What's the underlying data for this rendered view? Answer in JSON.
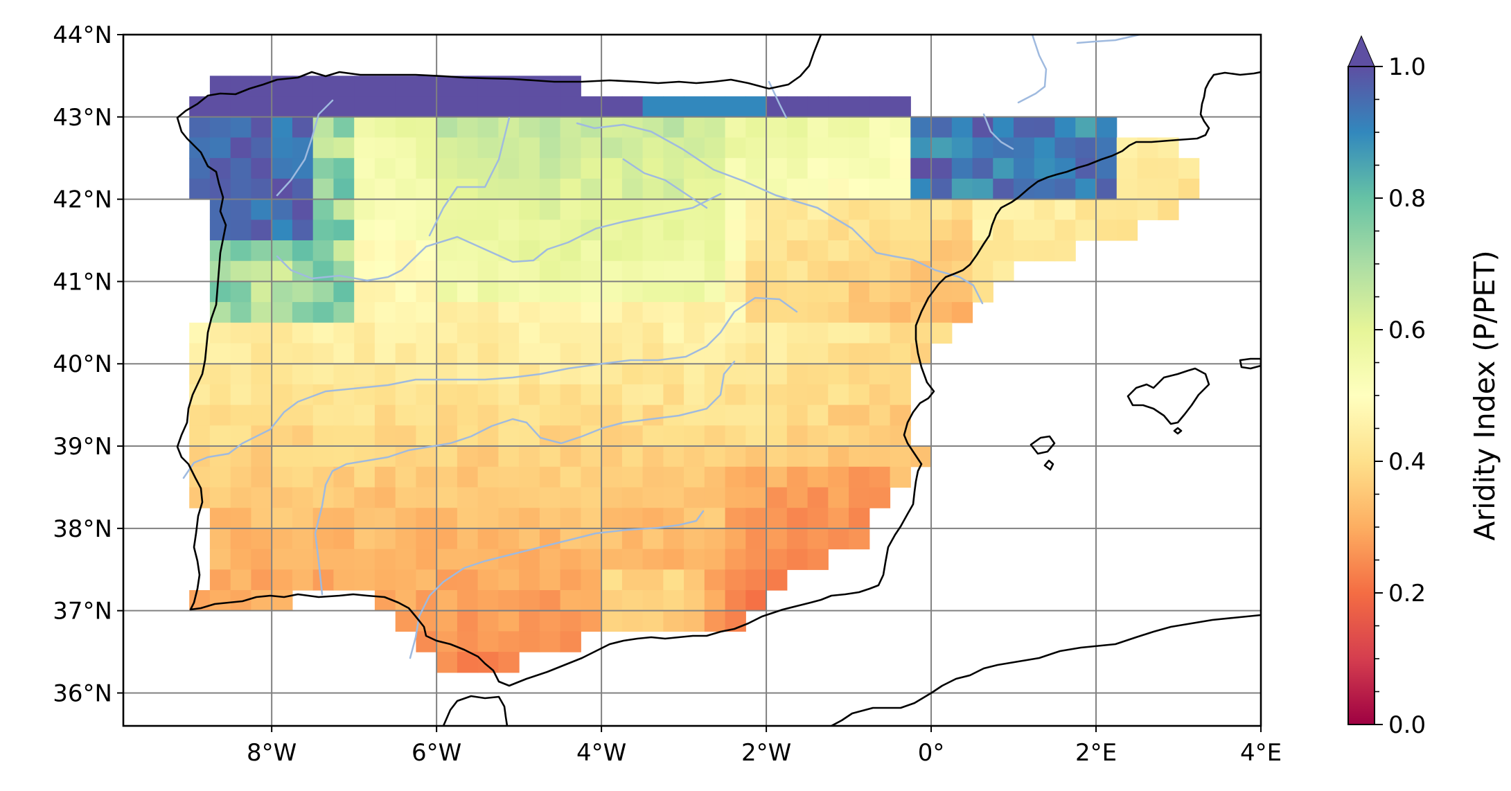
{
  "map": {
    "type": "raster-heatmap",
    "extent": {
      "lon_min": -9.8,
      "lon_max": 4.0,
      "lat_min": 35.6,
      "lat_max": 44.0
    },
    "grid_lines": true,
    "x_ticks": [
      {
        "value": -8,
        "label": "8°W"
      },
      {
        "value": -6,
        "label": "6°W"
      },
      {
        "value": -4,
        "label": "4°W"
      },
      {
        "value": -2,
        "label": "2°W"
      },
      {
        "value": 0,
        "label": "0°"
      },
      {
        "value": 2,
        "label": "2°E"
      },
      {
        "value": 4,
        "label": "4°E"
      }
    ],
    "y_ticks": [
      {
        "value": 44,
        "label": "44°N"
      },
      {
        "value": 43,
        "label": "43°N"
      },
      {
        "value": 42,
        "label": "42°N"
      },
      {
        "value": 41,
        "label": "41°N"
      },
      {
        "value": 40,
        "label": "40°N"
      },
      {
        "value": 39,
        "label": "39°N"
      },
      {
        "value": 38,
        "label": "38°N"
      },
      {
        "value": 37,
        "label": "37°N"
      },
      {
        "value": 36,
        "label": "36°N"
      }
    ],
    "colorbar": {
      "label": "Aridity Index (P/PET)",
      "colormap": "Spectral",
      "min": 0.0,
      "max": 1.0,
      "extend": "max",
      "ticks": [
        {
          "value": 0.0,
          "label": "0.0"
        },
        {
          "value": 0.2,
          "label": "0.2"
        },
        {
          "value": 0.4,
          "label": "0.4"
        },
        {
          "value": 0.6,
          "label": "0.6"
        },
        {
          "value": 0.8,
          "label": "0.8"
        },
        {
          "value": 1.0,
          "label": "1.0"
        }
      ],
      "colors": [
        "#9e0142",
        "#d53e4f",
        "#f46d43",
        "#fdae61",
        "#fee08b",
        "#ffffbf",
        "#e6f598",
        "#abdda4",
        "#66c2a5",
        "#3288bd",
        "#5e4fa2"
      ]
    },
    "colors": {
      "coastline": "#000000",
      "rivers": "#9fbadf",
      "gridlines": "#808080",
      "frame": "#000000"
    }
  }
}
